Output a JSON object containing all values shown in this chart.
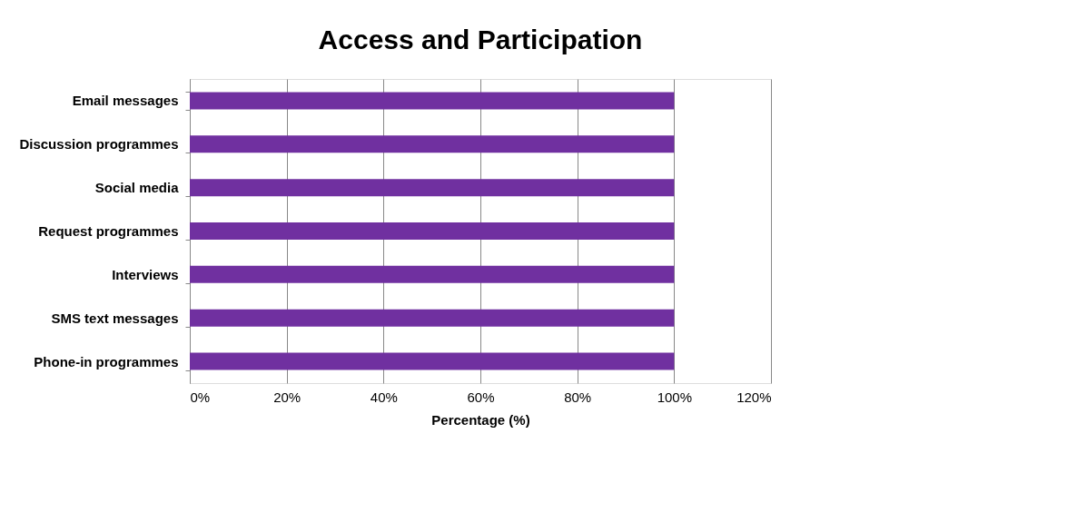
{
  "chart_data": {
    "type": "bar",
    "orientation": "horizontal",
    "title": "Access and Participation",
    "xlabel": "Percentage (%)",
    "categories": [
      "Email messages",
      "Discussion programmes",
      "Social media ",
      "Request programmes",
      "Interviews",
      "SMS text messages",
      "Phone-in programmes"
    ],
    "series": [
      {
        "color": "#7030a0",
        "values": [
          100,
          100,
          100,
          100,
          100,
          100,
          100
        ]
      }
    ],
    "xlim": [
      0,
      120
    ],
    "xticks": [
      {
        "value": 0,
        "label": "0%"
      },
      {
        "value": 20,
        "label": "20%"
      },
      {
        "value": 40,
        "label": "40%"
      },
      {
        "value": 60,
        "label": "60%"
      },
      {
        "value": 80,
        "label": "80%"
      },
      {
        "value": 100,
        "label": "100%"
      },
      {
        "value": 120,
        "label": "120%"
      }
    ],
    "grid": "x"
  }
}
